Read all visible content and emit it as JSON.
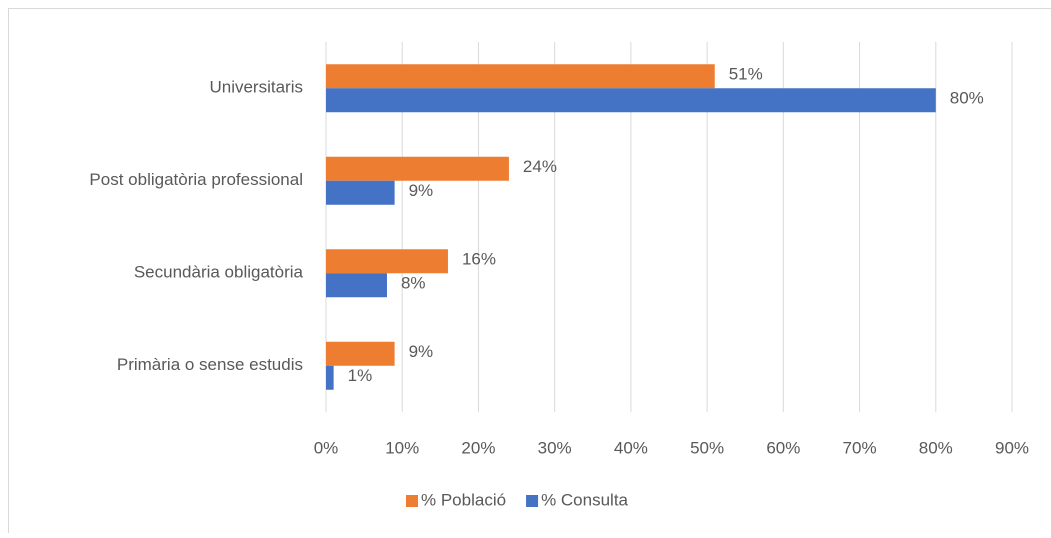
{
  "chart_data": {
    "type": "hbar",
    "categories": [
      "Universitaris",
      "Post obligatòria professional",
      "Secundària obligatòria",
      "Primària o sense estudis"
    ],
    "series": [
      {
        "name": "% Població",
        "color": "#ed7d31",
        "values": [
          51,
          24,
          16,
          9
        ],
        "value_labels": [
          "51%",
          "24%",
          "16%",
          "9%"
        ]
      },
      {
        "name": "% Consulta",
        "color": "#4472c4",
        "values": [
          80,
          9,
          8,
          1
        ],
        "value_labels": [
          "80%",
          "9%",
          "8%",
          "1%"
        ]
      }
    ],
    "xlim": [
      0,
      90
    ],
    "xticks": [
      {
        "value": 0,
        "label": "0%"
      },
      {
        "value": 10,
        "label": "10%"
      },
      {
        "value": 20,
        "label": "20%"
      },
      {
        "value": 30,
        "label": "30%"
      },
      {
        "value": 40,
        "label": "40%"
      },
      {
        "value": 50,
        "label": "50%"
      },
      {
        "value": 60,
        "label": "60%"
      },
      {
        "value": 70,
        "label": "70%"
      },
      {
        "value": 80,
        "label": "80%"
      },
      {
        "value": 90,
        "label": "90%"
      }
    ],
    "grid": true,
    "legend": "bottom"
  }
}
